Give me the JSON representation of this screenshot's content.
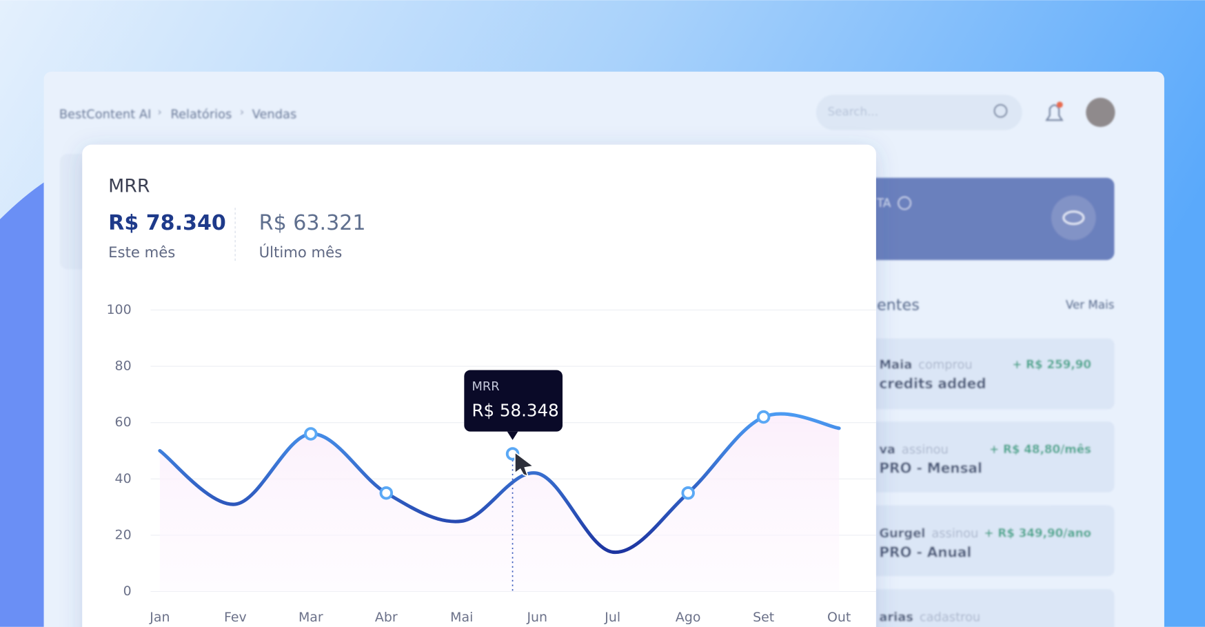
{
  "breadcrumb": [
    "BestContent AI",
    "Relatórios",
    "Vendas"
  ],
  "search_placeholder": "Search...",
  "side_card": {
    "label": "TA"
  },
  "recent": {
    "title": "entes",
    "link": "Ver Mais",
    "items": [
      {
        "name": "Maia",
        "action": "comprou",
        "detail": "credits added",
        "amount": "+ R$ 259,90"
      },
      {
        "name": "va",
        "action": "assinou",
        "detail": "PRO - Mensal",
        "amount": "+ R$ 48,80/mês"
      },
      {
        "name": "Gurgel",
        "action": "assinou",
        "detail": "PRO - Anual",
        "amount": "+ R$ 349,90/ano"
      },
      {
        "name": "arias",
        "action": "cadastrou"
      }
    ]
  },
  "summary": {
    "title": "MRR",
    "current": {
      "value": "R$ 78.340",
      "label": "Este mês"
    },
    "previous": {
      "value": "R$ 63.321",
      "label": "Último mês"
    }
  },
  "tooltip": {
    "value": "R$ 58.348"
  },
  "chart_data": {
    "type": "line",
    "categories": [
      "Jan",
      "Fev",
      "Mar",
      "Abr",
      "Mai",
      "Jun",
      "Jul",
      "Ago",
      "Set",
      "Out"
    ],
    "series": [
      {
        "name": "MRR",
        "color": "#2f4fc4",
        "values": [
          50,
          31,
          56,
          35,
          25,
          42,
          14,
          35,
          62,
          58
        ]
      }
    ],
    "ylim": [
      0,
      100
    ],
    "yticks": [
      0,
      20,
      40,
      60,
      80,
      100
    ],
    "grid": true
  }
}
